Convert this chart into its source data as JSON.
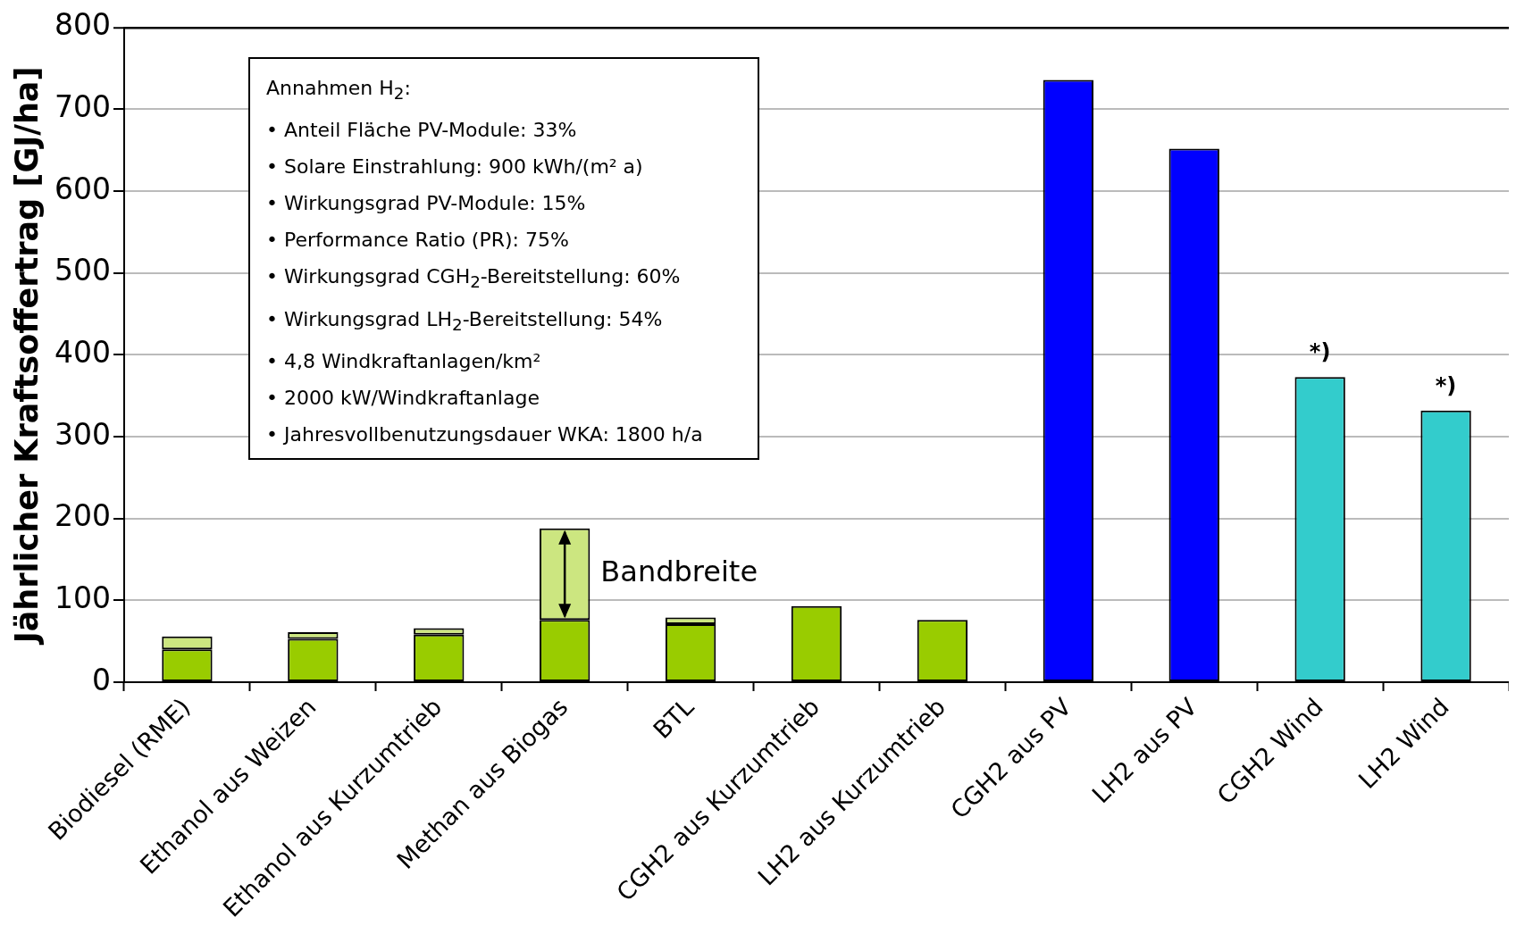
{
  "chart_data": {
    "type": "bar",
    "stacked": true,
    "ylabel": "Jährlicher Kraftsoffertrag [GJ/ha]",
    "categories": [
      "Biodiesel (RME)",
      "Ethanol aus Weizen",
      "Ethanol aus Kurzumtrieb",
      "Methan aus Biogas",
      "BTL",
      "CGH2 aus Kurzumtrieb",
      "LH2 aus Kurzumtrieb",
      "CGH2 aus PV",
      "LH2 aus PV",
      "CGH2 Wind",
      "LH2 Wind"
    ],
    "series": [
      {
        "colors": [
          "#99cc00",
          "#99cc00",
          "#99cc00",
          "#99cc00",
          "#99cc00",
          "#99cc00",
          "#99cc00",
          "#0000ff",
          "#0000ff",
          "#33cccc",
          "#33cccc"
        ],
        "values": [
          40,
          53,
          58,
          76,
          71,
          93,
          76,
          736,
          652,
          373,
          332
        ]
      },
      {
        "color": "#cce680",
        "values": [
          16,
          8,
          8,
          112,
          8,
          null,
          null,
          null,
          null,
          null,
          null
        ]
      }
    ],
    "ylim": [
      0,
      800
    ],
    "yticks": [
      0,
      100,
      200,
      300,
      400,
      500,
      600,
      700,
      800
    ],
    "grid": "y",
    "legend": false,
    "annotations": [
      "Annahmen H$_{2}$:",
      "• Anteil Fläche PV-Module: 33%",
      "• Solare Einstrahlung: 900 kWh/(m² a)",
      "• Wirkungsgrad PV-Module: 15%",
      "• Performance Ratio (PR): 75%",
      "• Wirkungsgrad CGH$_{2}$-Bereitstellung: 60%",
      "• Wirkungsgrad LH$_{2}$-Bereitstellung: 54%",
      "• 4,8 Windkraftanlagen/km²",
      "• 2000 kW/Windkraftanlage",
      "• Jahresvollbenutzungsdauer WKA: 1800 h/a",
      "Bandbreite",
      {
        "text": "*)",
        "x": "CGH2 Wind",
        "y": 373
      },
      {
        "text": "*)",
        "x": "LH2 Wind",
        "y": 332
      }
    ]
  }
}
